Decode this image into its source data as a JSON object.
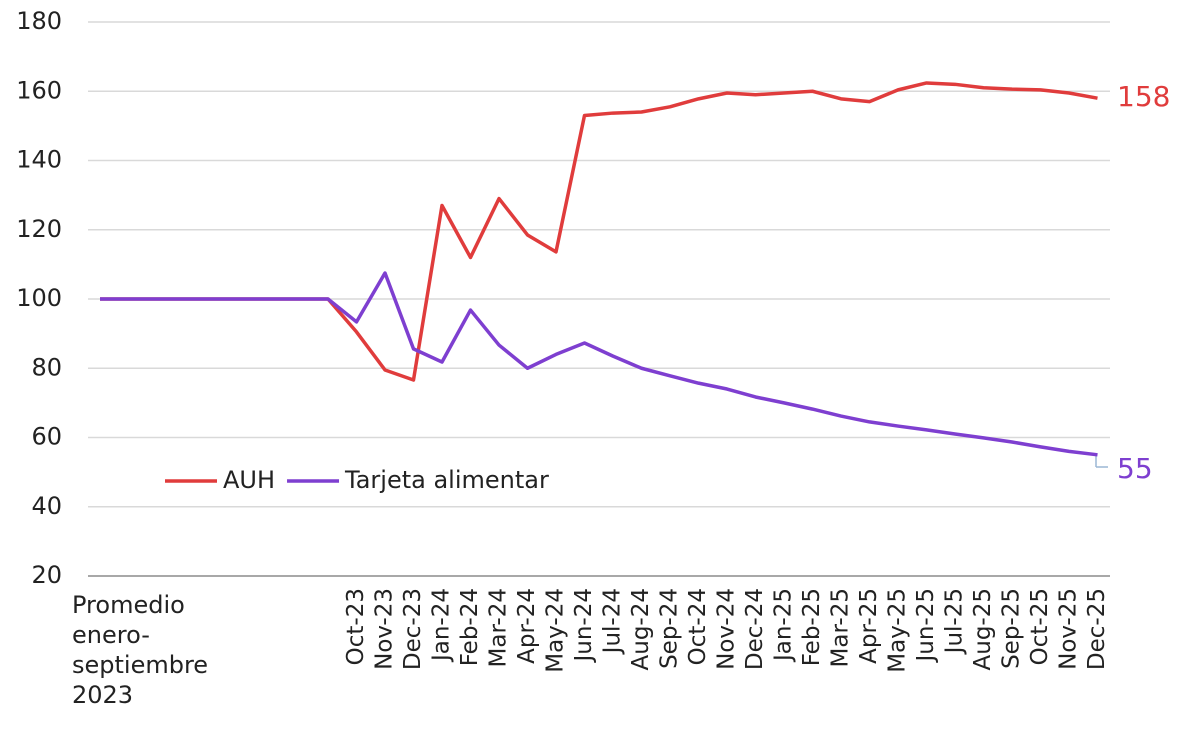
{
  "chart_data": {
    "type": "line",
    "categories": [
      "Promedio enero-septiembre 2023",
      null,
      null,
      null,
      null,
      null,
      null,
      null,
      null,
      "Oct-23",
      "Nov-23",
      "Dec-23",
      "Jan-24",
      "Feb-24",
      "Mar-24",
      "Apr-24",
      "May-24",
      "Jun-24",
      "Jul-24",
      "Aug-24",
      "Sep-24",
      "Oct-24",
      "Nov-24",
      "Dec-24",
      "Jan-25",
      "Feb-25",
      "Mar-25",
      "Apr-25",
      "May-25",
      "Jun-25",
      "Jul-25",
      "Aug-25",
      "Sep-25",
      "Oct-25",
      "Nov-25",
      "Dec-25"
    ],
    "series": [
      {
        "name": "AUH",
        "color": "#e03c3c",
        "values": [
          100,
          100,
          100,
          100,
          100,
          100,
          100,
          100,
          100,
          90.5,
          79.5,
          76.6,
          127,
          112,
          129,
          118.5,
          113.6,
          153,
          153.7,
          154,
          155.5,
          157.8,
          159.5,
          159,
          159.5,
          160,
          157.8,
          157,
          160.4,
          162.4,
          162,
          161,
          160.6,
          160.4,
          159.5,
          158
        ]
      },
      {
        "name": "Tarjeta alimentar",
        "color": "#7e3fd0",
        "values": [
          100,
          100,
          100,
          100,
          100,
          100,
          100,
          100,
          100,
          93.4,
          107.5,
          85.6,
          81.8,
          96.8,
          86.7,
          80,
          84,
          87.3,
          83.5,
          80,
          77.8,
          75.7,
          74,
          71.7,
          70,
          68.2,
          66.2,
          64.5,
          63.3,
          62.2,
          61,
          59.9,
          58.7,
          57.3,
          56,
          55
        ]
      }
    ],
    "ylim": [
      20,
      180
    ],
    "yticks": [
      20,
      40,
      60,
      80,
      100,
      120,
      140,
      160,
      180
    ],
    "grid": true
  }
}
